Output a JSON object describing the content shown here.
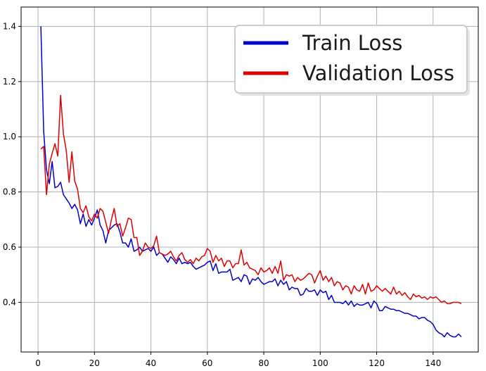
{
  "chart_data": {
    "type": "line",
    "title": "",
    "xlabel": "",
    "ylabel": "",
    "xlim": [
      -6,
      156
    ],
    "ylim": [
      0.22,
      1.47
    ],
    "xticks": [
      0,
      20,
      40,
      60,
      80,
      100,
      120,
      140
    ],
    "yticks": [
      0.4,
      0.6,
      0.8,
      1.0,
      1.2,
      1.4
    ],
    "xtick_labels": [
      "0",
      "20",
      "40",
      "60",
      "80",
      "100",
      "120",
      "140"
    ],
    "ytick_labels": [
      "0.4",
      "0.6",
      "0.8",
      "1.0",
      "1.2",
      "1.4"
    ],
    "grid": true,
    "legend_position": "top-right",
    "series": [
      {
        "name": "Train Loss",
        "color": "#0000cc",
        "x": [
          1,
          2,
          3,
          4,
          5,
          6,
          7,
          8,
          9,
          10,
          11,
          12,
          13,
          14,
          15,
          16,
          17,
          18,
          19,
          20,
          21,
          22,
          23,
          24,
          25,
          26,
          27,
          28,
          29,
          30,
          31,
          32,
          33,
          34,
          35,
          36,
          37,
          38,
          39,
          40,
          41,
          42,
          43,
          44,
          45,
          46,
          47,
          48,
          49,
          50,
          51,
          52,
          53,
          54,
          55,
          56,
          57,
          58,
          59,
          60,
          61,
          62,
          63,
          64,
          65,
          66,
          67,
          68,
          69,
          70,
          71,
          72,
          73,
          74,
          75,
          76,
          77,
          78,
          79,
          80,
          81,
          82,
          83,
          84,
          85,
          86,
          87,
          88,
          89,
          90,
          91,
          92,
          93,
          94,
          95,
          96,
          97,
          98,
          99,
          100,
          101,
          102,
          103,
          104,
          105,
          106,
          107,
          108,
          109,
          110,
          111,
          112,
          113,
          114,
          115,
          116,
          117,
          118,
          119,
          120,
          121,
          122,
          123,
          124,
          125,
          126,
          127,
          128,
          129,
          130,
          131,
          132,
          133,
          134,
          135,
          136,
          137,
          138,
          139,
          140,
          141,
          142,
          143,
          144,
          145,
          146,
          147,
          148,
          149,
          150
        ],
        "values": [
          1.4,
          1.02,
          0.88,
          0.83,
          0.91,
          0.815,
          0.82,
          0.835,
          0.79,
          0.775,
          0.76,
          0.74,
          0.755,
          0.735,
          0.685,
          0.72,
          0.675,
          0.7,
          0.68,
          0.705,
          0.735,
          0.68,
          0.66,
          0.615,
          0.66,
          0.67,
          0.68,
          0.685,
          0.655,
          0.615,
          0.615,
          0.6,
          0.63,
          0.585,
          0.59,
          0.6,
          0.585,
          0.59,
          0.595,
          0.585,
          0.6,
          0.57,
          0.58,
          0.575,
          0.56,
          0.545,
          0.565,
          0.555,
          0.54,
          0.56,
          0.54,
          0.545,
          0.54,
          0.545,
          0.53,
          0.52,
          0.525,
          0.53,
          0.535,
          0.545,
          0.55,
          0.515,
          0.54,
          0.505,
          0.51,
          0.51,
          0.51,
          0.52,
          0.48,
          0.485,
          0.49,
          0.475,
          0.5,
          0.495,
          0.465,
          0.485,
          0.48,
          0.49,
          0.475,
          0.465,
          0.47,
          0.475,
          0.475,
          0.485,
          0.46,
          0.48,
          0.465,
          0.475,
          0.445,
          0.455,
          0.45,
          0.45,
          0.425,
          0.43,
          0.45,
          0.44,
          0.44,
          0.445,
          0.425,
          0.445,
          0.435,
          0.44,
          0.41,
          0.425,
          0.4,
          0.4,
          0.4,
          0.395,
          0.405,
          0.39,
          0.405,
          0.385,
          0.395,
          0.39,
          0.39,
          0.395,
          0.4,
          0.38,
          0.405,
          0.395,
          0.37,
          0.37,
          0.385,
          0.38,
          0.375,
          0.375,
          0.37,
          0.37,
          0.365,
          0.36,
          0.36,
          0.355,
          0.35,
          0.35,
          0.34,
          0.345,
          0.345,
          0.335,
          0.33,
          0.32,
          0.3,
          0.29,
          0.285,
          0.275,
          0.29,
          0.28,
          0.275,
          0.275,
          0.285,
          0.275
        ]
      },
      {
        "name": "Validation Loss",
        "color": "#dd0000",
        "x": [
          1,
          2,
          3,
          4,
          5,
          6,
          7,
          8,
          9,
          10,
          11,
          12,
          13,
          14,
          15,
          16,
          17,
          18,
          19,
          20,
          21,
          22,
          23,
          24,
          25,
          26,
          27,
          28,
          29,
          30,
          31,
          32,
          33,
          34,
          35,
          36,
          37,
          38,
          39,
          40,
          41,
          42,
          43,
          44,
          45,
          46,
          47,
          48,
          49,
          50,
          51,
          52,
          53,
          54,
          55,
          56,
          57,
          58,
          59,
          60,
          61,
          62,
          63,
          64,
          65,
          66,
          67,
          68,
          69,
          70,
          71,
          72,
          73,
          74,
          75,
          76,
          77,
          78,
          79,
          80,
          81,
          82,
          83,
          84,
          85,
          86,
          87,
          88,
          89,
          90,
          91,
          92,
          93,
          94,
          95,
          96,
          97,
          98,
          99,
          100,
          101,
          102,
          103,
          104,
          105,
          106,
          107,
          108,
          109,
          110,
          111,
          112,
          113,
          114,
          115,
          116,
          117,
          118,
          119,
          120,
          121,
          122,
          123,
          124,
          125,
          126,
          127,
          128,
          129,
          130,
          131,
          132,
          133,
          134,
          135,
          136,
          137,
          138,
          139,
          140,
          141,
          142,
          143,
          144,
          145,
          146,
          147,
          148,
          149,
          150
        ],
        "values": [
          0.955,
          0.965,
          0.79,
          0.9,
          0.94,
          0.975,
          0.93,
          1.15,
          1.01,
          0.95,
          0.835,
          0.945,
          0.84,
          0.81,
          0.74,
          0.725,
          0.75,
          0.71,
          0.695,
          0.72,
          0.705,
          0.74,
          0.73,
          0.69,
          0.65,
          0.7,
          0.74,
          0.675,
          0.685,
          0.64,
          0.67,
          0.705,
          0.7,
          0.635,
          0.635,
          0.57,
          0.585,
          0.615,
          0.6,
          0.595,
          0.605,
          0.64,
          0.58,
          0.575,
          0.57,
          0.575,
          0.585,
          0.565,
          0.55,
          0.57,
          0.58,
          0.555,
          0.545,
          0.555,
          0.54,
          0.56,
          0.55,
          0.565,
          0.57,
          0.595,
          0.585,
          0.545,
          0.57,
          0.55,
          0.56,
          0.53,
          0.55,
          0.55,
          0.525,
          0.54,
          0.54,
          0.59,
          0.535,
          0.545,
          0.525,
          0.52,
          0.515,
          0.5,
          0.525,
          0.51,
          0.515,
          0.525,
          0.505,
          0.53,
          0.505,
          0.55,
          0.48,
          0.5,
          0.495,
          0.5,
          0.475,
          0.49,
          0.48,
          0.485,
          0.495,
          0.505,
          0.5,
          0.47,
          0.495,
          0.515,
          0.48,
          0.495,
          0.475,
          0.49,
          0.46,
          0.475,
          0.47,
          0.445,
          0.46,
          0.455,
          0.43,
          0.46,
          0.445,
          0.44,
          0.465,
          0.43,
          0.47,
          0.44,
          0.445,
          0.46,
          0.45,
          0.44,
          0.45,
          0.44,
          0.43,
          0.455,
          0.43,
          0.44,
          0.425,
          0.435,
          0.42,
          0.41,
          0.43,
          0.42,
          0.425,
          0.415,
          0.42,
          0.41,
          0.42,
          0.415,
          0.42,
          0.41,
          0.4,
          0.405,
          0.395,
          0.395,
          0.4,
          0.4,
          0.4,
          0.395
        ]
      }
    ]
  }
}
